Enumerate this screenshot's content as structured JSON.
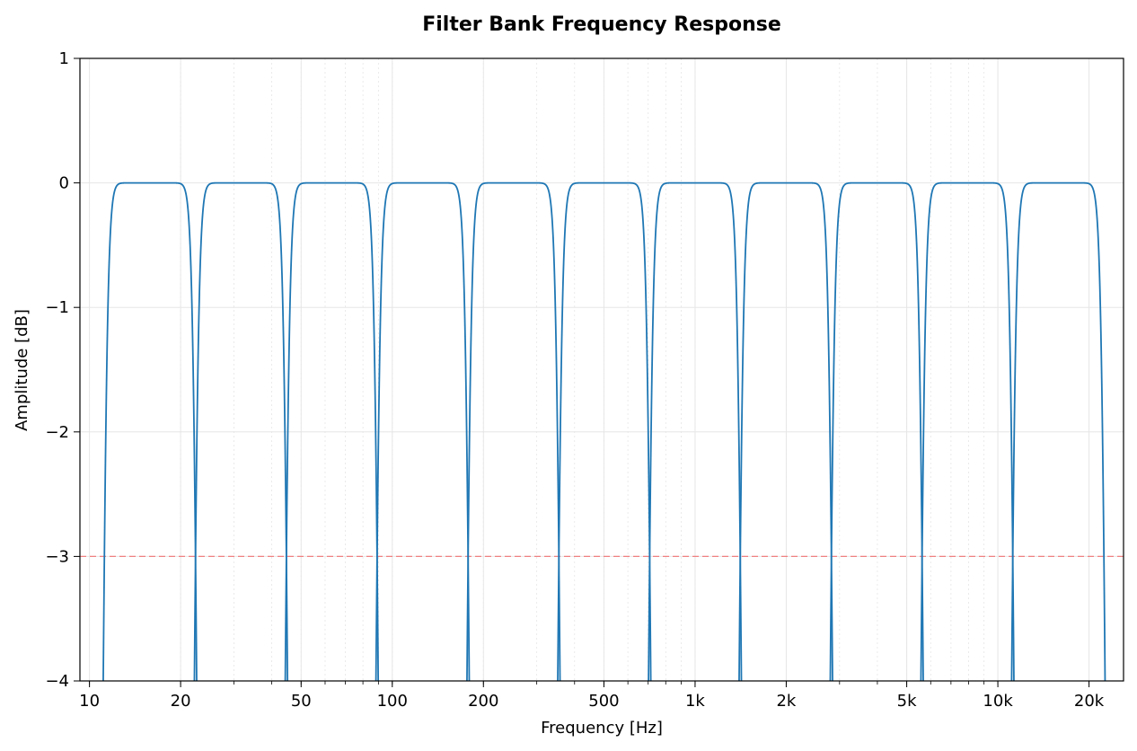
{
  "chart_data": {
    "type": "line",
    "title": "Filter Bank Frequency Response",
    "xlabel": "Frequency [Hz]",
    "ylabel": "Amplitude [dB]",
    "xscale": "log",
    "xlim": [
      9.3,
      26000
    ],
    "ylim": [
      -4,
      1
    ],
    "grid": true,
    "legend": "none",
    "x_ticks": [
      {
        "value": 10,
        "label": "10"
      },
      {
        "value": 20,
        "label": "20"
      },
      {
        "value": 50,
        "label": "50"
      },
      {
        "value": 100,
        "label": "100"
      },
      {
        "value": 200,
        "label": "200"
      },
      {
        "value": 500,
        "label": "500"
      },
      {
        "value": 1000,
        "label": "1k"
      },
      {
        "value": 2000,
        "label": "2k"
      },
      {
        "value": 5000,
        "label": "5k"
      },
      {
        "value": 10000,
        "label": "10k"
      },
      {
        "value": 20000,
        "label": "20k"
      }
    ],
    "y_ticks": [
      {
        "value": 1,
        "label": "1"
      },
      {
        "value": 0,
        "label": "0"
      },
      {
        "value": -1,
        "label": "−1"
      },
      {
        "value": -2,
        "label": "−2"
      },
      {
        "value": -3,
        "label": "−3"
      },
      {
        "value": -4,
        "label": "−4"
      }
    ],
    "reference_line": {
      "y": -3,
      "color": "#f08080",
      "style": "dashed"
    },
    "series_color": "#1f77b4",
    "bands": [
      {
        "f_low": 11.2,
        "f_high": 22.4
      },
      {
        "f_low": 22.4,
        "f_high": 44.7
      },
      {
        "f_low": 44.7,
        "f_high": 89.1
      },
      {
        "f_low": 89.1,
        "f_high": 178
      },
      {
        "f_low": 178,
        "f_high": 355
      },
      {
        "f_low": 355,
        "f_high": 708
      },
      {
        "f_low": 708,
        "f_high": 1410
      },
      {
        "f_low": 1410,
        "f_high": 2820
      },
      {
        "f_low": 2820,
        "f_high": 5620
      },
      {
        "f_low": 5620,
        "f_high": 11200
      },
      {
        "f_low": 11200,
        "f_high": 22400
      }
    ],
    "filter_order": 8
  }
}
